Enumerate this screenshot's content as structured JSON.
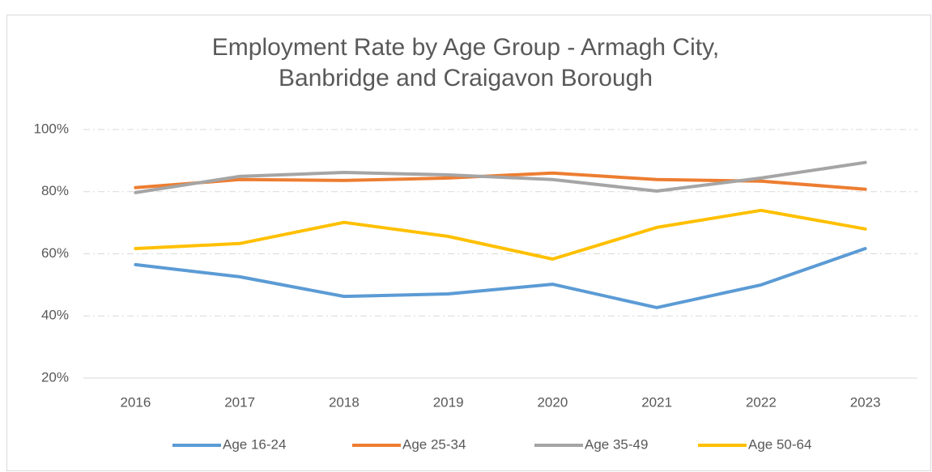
{
  "chart_data": {
    "type": "line",
    "title": "Employment Rate by Age Group - Armagh City, Banbridge and Craigavon Borough",
    "categories": [
      "2016",
      "2017",
      "2018",
      "2019",
      "2020",
      "2021",
      "2022",
      "2023"
    ],
    "series": [
      {
        "name": "Age 16-24",
        "color": "#5b9bd5",
        "values": [
          56.5,
          52.6,
          46.3,
          47.1,
          50.2,
          42.7,
          50.0,
          61.7
        ]
      },
      {
        "name": "Age 25-34",
        "color": "#ed7d31",
        "values": [
          81.3,
          83.9,
          83.6,
          84.4,
          86.0,
          83.9,
          83.4,
          80.8
        ]
      },
      {
        "name": "Age 35-49",
        "color": "#a5a5a5",
        "values": [
          79.7,
          84.9,
          86.2,
          85.4,
          83.9,
          80.2,
          84.4,
          89.4
        ]
      },
      {
        "name": "Age 50-64",
        "color": "#ffc000",
        "values": [
          61.7,
          63.3,
          70.1,
          65.6,
          58.3,
          68.5,
          74.0,
          68.0
        ]
      }
    ],
    "ylim": [
      20,
      100
    ],
    "yticks": [
      {
        "value": 20,
        "label": "20%"
      },
      {
        "value": 40,
        "label": "40%"
      },
      {
        "value": 60,
        "label": "60%"
      },
      {
        "value": 80,
        "label": "80%"
      },
      {
        "value": 100,
        "label": "100%"
      }
    ],
    "grid": true,
    "legend": "bottom"
  }
}
